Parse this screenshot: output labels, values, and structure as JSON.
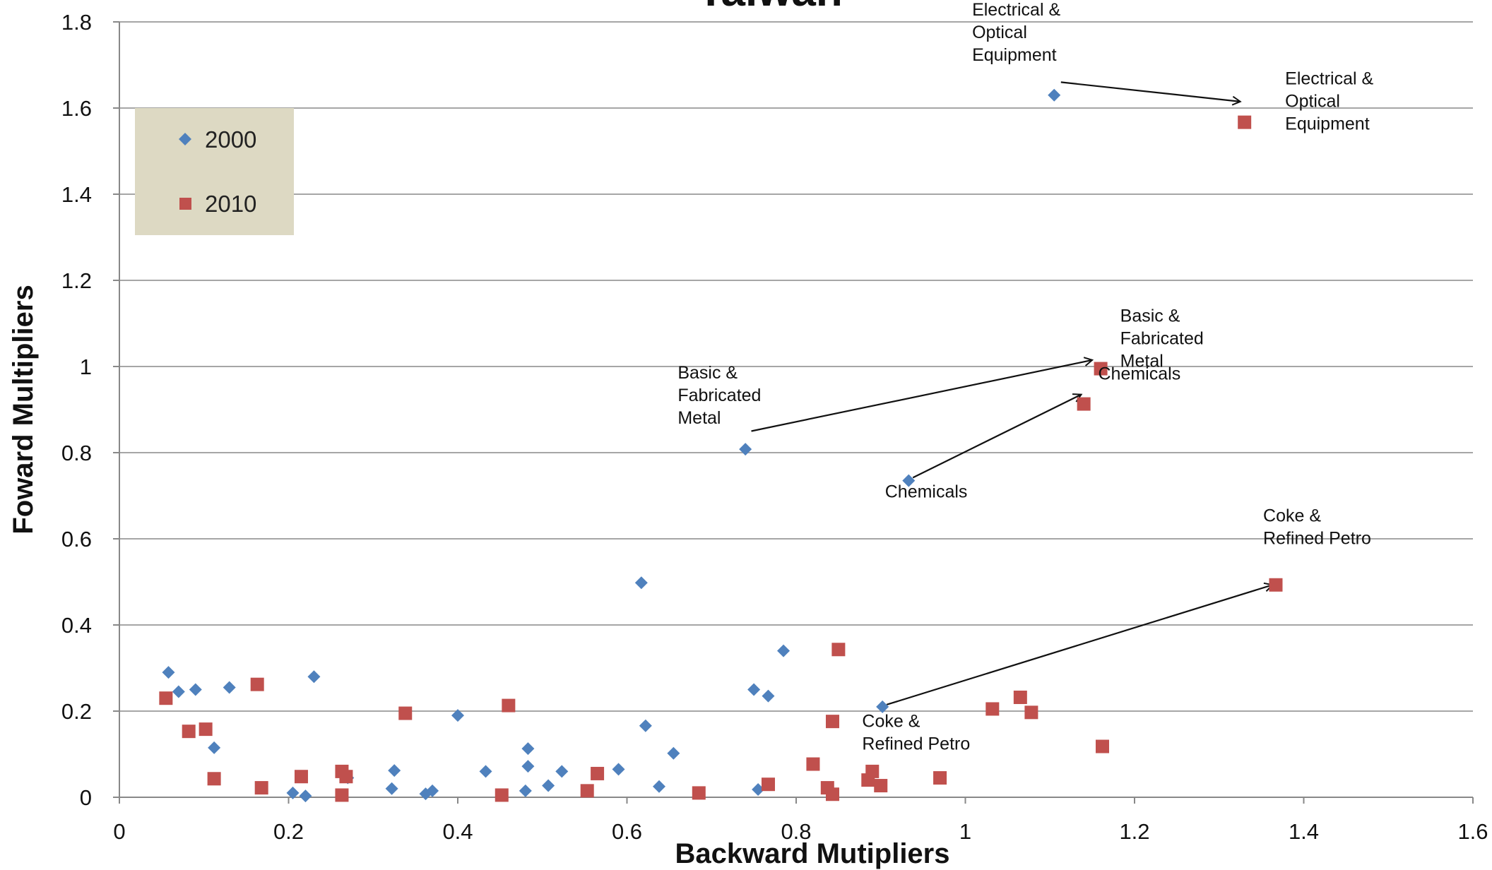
{
  "chart_data": {
    "type": "scatter",
    "title": "Taiwan",
    "xlabel": "Backward Mutipliers",
    "ylabel": "Foward Multipliers",
    "xlim": [
      0,
      1.6
    ],
    "ylim": [
      0,
      1.8
    ],
    "xticks": [
      0,
      0.2,
      0.4,
      0.6,
      0.8,
      1,
      1.2,
      1.4,
      1.6
    ],
    "yticks": [
      0,
      0.2,
      0.4,
      0.6,
      0.8,
      1,
      1.2,
      1.4,
      1.6,
      1.8
    ],
    "xtick_labels": [
      "0",
      "0.2",
      "0.4",
      "0.6",
      "0.8",
      "1",
      "1.2",
      "1.4",
      "1.6"
    ],
    "ytick_labels": [
      "0",
      "0.2",
      "0.4",
      "0.6",
      "0.8",
      "1",
      "1.2",
      "1.4",
      "1.6",
      "1.8"
    ],
    "grid": "horizontal",
    "legend_position": "top-left",
    "colors": {
      "2000": "#4f81bd",
      "2010": "#c0504d",
      "legend_bg": "#ddd9c3",
      "grid": "#a6a6a6"
    },
    "series": [
      {
        "name": "2000",
        "marker": "diamond",
        "points": [
          [
            0.058,
            0.29
          ],
          [
            0.07,
            0.245
          ],
          [
            0.09,
            0.25
          ],
          [
            0.112,
            0.115
          ],
          [
            0.13,
            0.255
          ],
          [
            0.205,
            0.01
          ],
          [
            0.22,
            0.003
          ],
          [
            0.23,
            0.28
          ],
          [
            0.27,
            0.045
          ],
          [
            0.322,
            0.02
          ],
          [
            0.325,
            0.062
          ],
          [
            0.362,
            0.008
          ],
          [
            0.37,
            0.015
          ],
          [
            0.4,
            0.19
          ],
          [
            0.433,
            0.06
          ],
          [
            0.48,
            0.015
          ],
          [
            0.483,
            0.072
          ],
          [
            0.483,
            0.113
          ],
          [
            0.507,
            0.027
          ],
          [
            0.523,
            0.06
          ],
          [
            0.59,
            0.065
          ],
          [
            0.617,
            0.498
          ],
          [
            0.622,
            0.166
          ],
          [
            0.638,
            0.025
          ],
          [
            0.655,
            0.102
          ],
          [
            0.74,
            0.808
          ],
          [
            0.75,
            0.25
          ],
          [
            0.755,
            0.018
          ],
          [
            0.767,
            0.235
          ],
          [
            0.785,
            0.34
          ],
          [
            0.902,
            0.21
          ],
          [
            0.933,
            0.735
          ],
          [
            1.105,
            1.63
          ]
        ]
      },
      {
        "name": "2010",
        "marker": "square",
        "points": [
          [
            0.055,
            0.23
          ],
          [
            0.082,
            0.153
          ],
          [
            0.102,
            0.158
          ],
          [
            0.112,
            0.043
          ],
          [
            0.163,
            0.262
          ],
          [
            0.168,
            0.022
          ],
          [
            0.215,
            0.048
          ],
          [
            0.263,
            0.06
          ],
          [
            0.263,
            0.005
          ],
          [
            0.268,
            0.048
          ],
          [
            0.338,
            0.195
          ],
          [
            0.452,
            0.005
          ],
          [
            0.46,
            0.213
          ],
          [
            0.553,
            0.015
          ],
          [
            0.565,
            0.055
          ],
          [
            0.685,
            0.01
          ],
          [
            0.767,
            0.03
          ],
          [
            0.82,
            0.077
          ],
          [
            0.837,
            0.022
          ],
          [
            0.843,
            0.176
          ],
          [
            0.843,
            0.007
          ],
          [
            0.85,
            0.343
          ],
          [
            0.885,
            0.04
          ],
          [
            0.89,
            0.06
          ],
          [
            0.9,
            0.027
          ],
          [
            0.97,
            0.045
          ],
          [
            1.032,
            0.205
          ],
          [
            1.065,
            0.232
          ],
          [
            1.078,
            0.197
          ],
          [
            1.14,
            0.913
          ],
          [
            1.16,
            0.995
          ],
          [
            1.162,
            0.118
          ],
          [
            1.33,
            1.567
          ],
          [
            1.367,
            0.493
          ]
        ]
      }
    ],
    "annotations": [
      {
        "lines": [
          "Electrical &",
          "Optical",
          "Equipment"
        ],
        "x": 1.008,
        "y": 1.815
      },
      {
        "lines": [
          "Electrical &",
          "Optical",
          "Equipment"
        ],
        "x": 1.378,
        "y": 1.655
      },
      {
        "lines": [
          "Basic &",
          "Fabricated",
          "Metal"
        ],
        "x": 1.183,
        "y": 1.104
      },
      {
        "lines": [
          "Chemicals"
        ],
        "x": 1.157,
        "y": 0.97
      },
      {
        "lines": [
          "Basic &",
          "Fabricated",
          "Metal"
        ],
        "x": 0.66,
        "y": 0.972
      },
      {
        "lines": [
          "Chemicals"
        ],
        "x": 0.905,
        "y": 0.696
      },
      {
        "lines": [
          "Coke &",
          "Refined Petro"
        ],
        "x": 1.352,
        "y": 0.64
      },
      {
        "lines": [
          "Coke &",
          "Refined Petro"
        ],
        "x": 0.878,
        "y": 0.163
      }
    ],
    "arrows": [
      {
        "from": [
          1.113,
          1.66
        ],
        "to": [
          1.325,
          1.615
        ]
      },
      {
        "from": [
          0.747,
          0.85
        ],
        "to": [
          1.15,
          1.015
        ]
      },
      {
        "from": [
          0.938,
          0.742
        ],
        "to": [
          1.137,
          0.935
        ]
      },
      {
        "from": [
          0.907,
          0.215
        ],
        "to": [
          1.363,
          0.493
        ]
      }
    ]
  }
}
